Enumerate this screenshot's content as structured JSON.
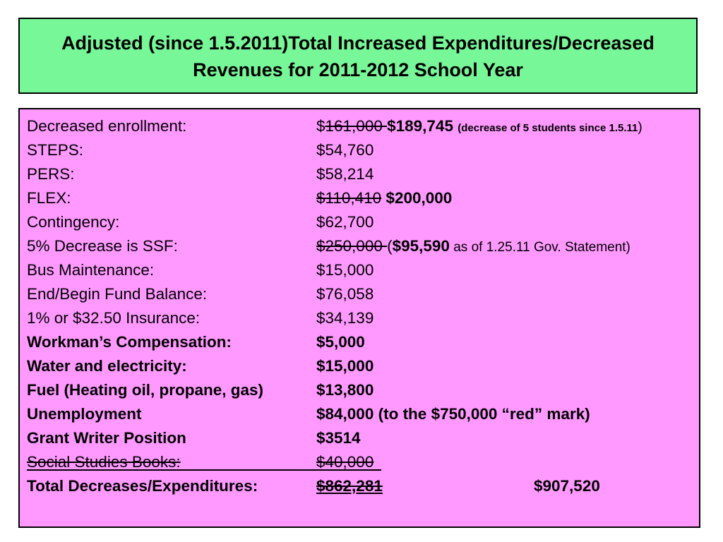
{
  "title": {
    "line1": "Adjusted (since 1.5.2011)Total Increased Expenditures/Decreased",
    "line2": "Revenues for 2011-2012 School Year"
  },
  "rows": {
    "r0": {
      "label": "Decreased enrollment:",
      "value_prefix": "$",
      "value_old": "161,000 ",
      "value_new": "$189,745",
      "note": "(decrease of 5 students since 1.5.11",
      "note_close": ")"
    },
    "r1": {
      "label": "STEPS:",
      "value": "$54,760"
    },
    "r2": {
      "label": "PERS:",
      "value": "$58,214"
    },
    "r3": {
      "label": "FLEX:",
      "value_old": "$110,410",
      "value_new": "$200,000"
    },
    "r4": {
      "label": "Contingency:",
      "value": "$62,700"
    },
    "r5": {
      "label": "5% Decrease is SSF:",
      "value_old": "$250,000 ",
      "open_paren": "(",
      "value_new": "$95,590",
      "note": " as of 1.25.11 Gov. Statement)"
    },
    "r6": {
      "label": "Bus Maintenance:",
      "value": "$15,000"
    },
    "r7": {
      "label": "End/Begin Fund Balance:",
      "value": "$76,058"
    },
    "r8": {
      "label": "1% or $32.50 Insurance:",
      "value": "$34,139"
    },
    "r9": {
      "label": "Workman’s Compensation:",
      "value": "$5,000"
    },
    "r10": {
      "label": "Water and electricity:",
      "value": "$15,000"
    },
    "r11": {
      "label": "Fuel (Heating oil, propane, gas)",
      "value": "$13,800"
    },
    "r12": {
      "label": "Unemployment",
      "value": "$84,000 (to the $750,000 “red” mark)"
    },
    "r13": {
      "label": "Grant Writer Position",
      "value": "$3514"
    },
    "r14": {
      "label": "Social Studies Books:",
      "value": "$40,000"
    },
    "r15": {
      "label": "Total Decreases/Expenditures:",
      "value_old": "$862,281",
      "value_new": "$907,520"
    }
  },
  "colors": {
    "title_bg": "#77f797",
    "content_bg": "#ff99ff",
    "border": "#000000"
  }
}
